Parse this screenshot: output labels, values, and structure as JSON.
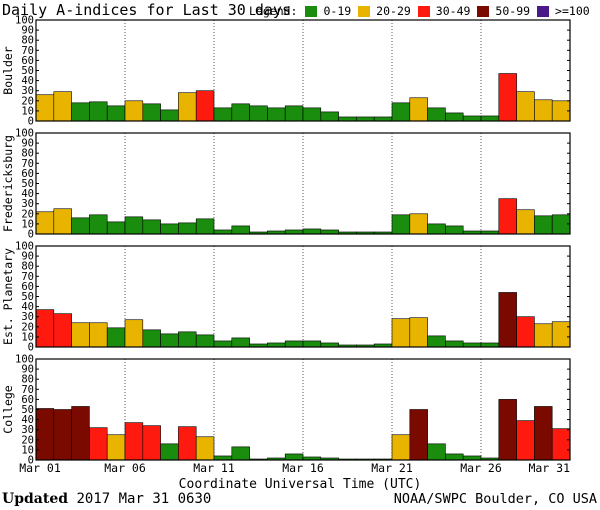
{
  "title": "Daily A-indices for Last 30 days",
  "legend": {
    "label": "Legend:",
    "items": [
      {
        "label": "0-19",
        "color": "#1a8c0e"
      },
      {
        "label": "20-29",
        "color": "#e8b400"
      },
      {
        "label": "30-49",
        "color": "#ff1a0f"
      },
      {
        "label": "50-99",
        "color": "#7a0a00"
      },
      {
        "label": ">=100",
        "color": "#4a1a8a"
      }
    ]
  },
  "footer": {
    "updated_label": "Updated",
    "updated_value": "2017 Mar 31 0630",
    "credit": "NOAA/SWPC Boulder, CO USA"
  },
  "chart_data": {
    "type": "bar",
    "title": "Daily A-indices for Last 30 days",
    "xlabel": "Coordinate Universal Time (UTC)",
    "x_tick_labels": [
      "Mar 01",
      "Mar 06",
      "Mar 11",
      "Mar 16",
      "Mar 21",
      "Mar 26",
      "Mar 31"
    ],
    "ylim": [
      0,
      100
    ],
    "yticks": [
      0,
      10,
      20,
      30,
      40,
      50,
      60,
      70,
      80,
      90,
      100
    ],
    "grid": true,
    "days": 30,
    "panels": [
      {
        "name": "Boulder",
        "values": [
          26,
          29,
          18,
          19,
          15,
          20,
          17,
          11,
          28,
          30,
          13,
          17,
          15,
          13,
          15,
          13,
          9,
          4,
          4,
          4,
          18,
          23,
          13,
          8,
          5,
          5,
          47,
          29,
          21,
          20
        ]
      },
      {
        "name": "Fredericksburg",
        "values": [
          22,
          25,
          16,
          19,
          12,
          17,
          14,
          10,
          11,
          15,
          4,
          8,
          2,
          3,
          4,
          5,
          4,
          2,
          2,
          2,
          19,
          20,
          10,
          8,
          3,
          3,
          35,
          24,
          18,
          19
        ]
      },
      {
        "name": "Est. Planetary",
        "values": [
          37,
          33,
          24,
          24,
          19,
          27,
          17,
          13,
          15,
          12,
          6,
          9,
          3,
          4,
          6,
          6,
          4,
          2,
          2,
          3,
          28,
          29,
          11,
          6,
          4,
          4,
          54,
          30,
          23,
          25
        ]
      },
      {
        "name": "College",
        "values": [
          51,
          50,
          53,
          32,
          25,
          37,
          34,
          16,
          33,
          23,
          4,
          13,
          1,
          2,
          6,
          3,
          2,
          1,
          1,
          1,
          25,
          50,
          16,
          6,
          4,
          2,
          60,
          39,
          53,
          31
        ]
      }
    ]
  }
}
